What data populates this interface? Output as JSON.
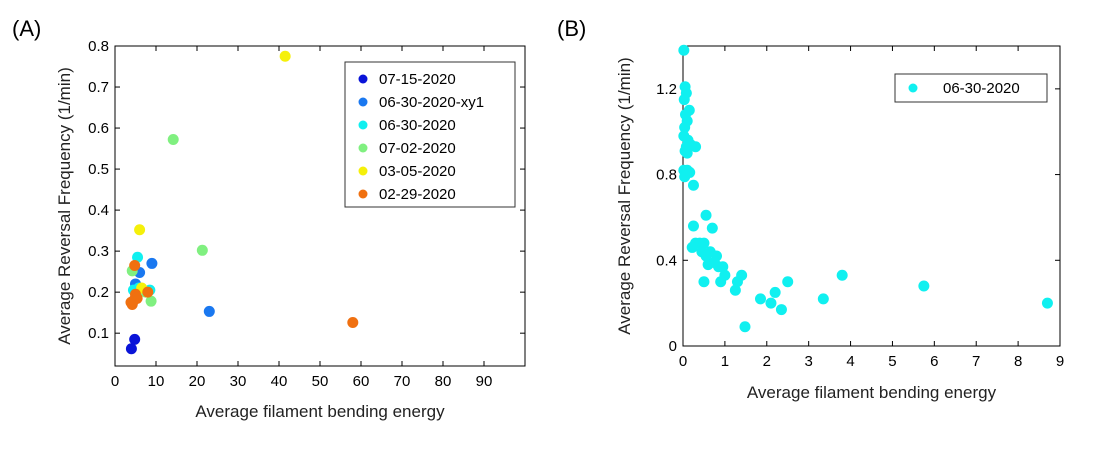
{
  "chart_data": [
    {
      "panel_label": "(A)",
      "type": "scatter",
      "xlabel": "Average filament bending energy",
      "ylabel": "Average Reversal Frequency (1/min)",
      "xlim": [
        0,
        100
      ],
      "ylim": [
        0.02,
        0.8
      ],
      "xticks": [
        0,
        10,
        20,
        30,
        40,
        50,
        60,
        70,
        80,
        90
      ],
      "yticks": [
        0.1,
        0.2,
        0.3,
        0.4,
        0.5,
        0.6,
        0.7,
        0.8
      ],
      "grid": false,
      "legend_position": "top-right",
      "series": [
        {
          "name": "07-15-2020",
          "color": "#0a14d8",
          "points": [
            [
              4.0,
              0.062
            ],
            [
              4.8,
              0.085
            ]
          ]
        },
        {
          "name": "06-30-2020-xy1",
          "color": "#1a78f0",
          "points": [
            [
              9.0,
              0.27
            ],
            [
              6.0,
              0.248
            ],
            [
              23.0,
              0.153
            ],
            [
              5.0,
              0.22
            ],
            [
              4.6,
              0.18
            ]
          ]
        },
        {
          "name": "06-30-2020",
          "color": "#10f0f0",
          "points": [
            [
              5.5,
              0.285
            ],
            [
              4.5,
              0.205
            ],
            [
              8.5,
              0.205
            ],
            [
              5.8,
              0.21
            ]
          ]
        },
        {
          "name": "07-02-2020",
          "color": "#80f080",
          "points": [
            [
              14.2,
              0.572
            ],
            [
              21.3,
              0.302
            ],
            [
              4.2,
              0.252
            ],
            [
              8.8,
              0.178
            ],
            [
              7.5,
              0.2
            ]
          ]
        },
        {
          "name": "03-05-2020",
          "color": "#f5f00a",
          "points": [
            [
              41.5,
              0.775
            ],
            [
              6.0,
              0.352
            ],
            [
              6.5,
              0.21
            ]
          ]
        },
        {
          "name": "02-29-2020",
          "color": "#f07010",
          "points": [
            [
              58.0,
              0.126
            ],
            [
              4.8,
              0.265
            ],
            [
              8.0,
              0.2
            ],
            [
              4.2,
              0.17
            ],
            [
              5.0,
              0.195
            ],
            [
              4.6,
              0.18
            ],
            [
              5.4,
              0.185
            ],
            [
              3.9,
              0.175
            ]
          ]
        }
      ]
    },
    {
      "panel_label": "(B)",
      "type": "scatter",
      "xlabel": "Average filament bending energy",
      "ylabel": "Average Reversal Frequency (1/min)",
      "xlim": [
        0,
        9
      ],
      "ylim": [
        0,
        1.4
      ],
      "xticks": [
        0,
        1,
        2,
        3,
        4,
        5,
        6,
        7,
        8,
        9
      ],
      "yticks": [
        0,
        0.4,
        0.8,
        1.2
      ],
      "ytick_labels": [
        "0",
        "0.4",
        "0.8",
        "1.2"
      ],
      "grid": false,
      "legend_position": "top-right",
      "series": [
        {
          "name": "06-30-2020",
          "color": "#10f0f0",
          "points": [
            [
              0.02,
              1.38
            ],
            [
              0.05,
              1.21
            ],
            [
              0.08,
              1.18
            ],
            [
              0.03,
              1.15
            ],
            [
              0.15,
              1.1
            ],
            [
              0.06,
              1.08
            ],
            [
              0.1,
              1.05
            ],
            [
              0.04,
              1.02
            ],
            [
              0.02,
              0.98
            ],
            [
              0.12,
              0.96
            ],
            [
              0.08,
              0.93
            ],
            [
              0.05,
              0.91
            ],
            [
              0.18,
              0.94
            ],
            [
              0.3,
              0.93
            ],
            [
              0.1,
              0.9
            ],
            [
              0.02,
              0.82
            ],
            [
              0.1,
              0.82
            ],
            [
              0.04,
              0.79
            ],
            [
              0.16,
              0.81
            ],
            [
              0.25,
              0.75
            ],
            [
              0.55,
              0.61
            ],
            [
              0.25,
              0.56
            ],
            [
              0.7,
              0.55
            ],
            [
              0.3,
              0.48
            ],
            [
              0.4,
              0.48
            ],
            [
              0.22,
              0.46
            ],
            [
              0.5,
              0.48
            ],
            [
              0.45,
              0.44
            ],
            [
              0.55,
              0.42
            ],
            [
              0.65,
              0.44
            ],
            [
              0.8,
              0.42
            ],
            [
              0.6,
              0.38
            ],
            [
              0.75,
              0.39
            ],
            [
              0.85,
              0.37
            ],
            [
              0.95,
              0.37
            ],
            [
              1.0,
              0.33
            ],
            [
              1.4,
              0.33
            ],
            [
              0.5,
              0.3
            ],
            [
              0.9,
              0.3
            ],
            [
              1.3,
              0.3
            ],
            [
              2.5,
              0.3
            ],
            [
              1.25,
              0.26
            ],
            [
              1.85,
              0.22
            ],
            [
              2.1,
              0.2
            ],
            [
              2.2,
              0.25
            ],
            [
              2.35,
              0.17
            ],
            [
              3.35,
              0.22
            ],
            [
              3.8,
              0.33
            ],
            [
              5.75,
              0.28
            ],
            [
              8.7,
              0.2
            ],
            [
              1.48,
              0.09
            ]
          ]
        }
      ]
    }
  ]
}
